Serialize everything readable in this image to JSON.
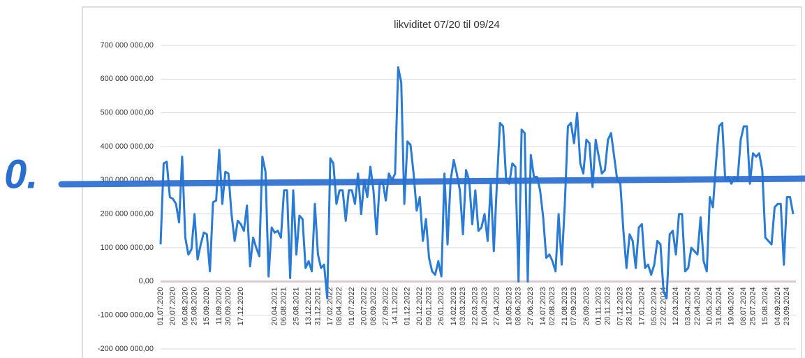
{
  "chart_data": {
    "type": "line",
    "title": "likviditet 07/20 til 09/24",
    "annotation": "0.",
    "ylim": [
      -200000000,
      700000000
    ],
    "yticks": [
      {
        "value": -200000000,
        "label": "-200 000 000,00"
      },
      {
        "value": -100000000,
        "label": "-100 000 000,00"
      },
      {
        "value": 0,
        "label": "0,00"
      },
      {
        "value": 100000000,
        "label": "100 000 000,00"
      },
      {
        "value": 200000000,
        "label": "200 000 000,00"
      },
      {
        "value": 300000000,
        "label": "300 000 000,00"
      },
      {
        "value": 400000000,
        "label": "400 000 000,00"
      },
      {
        "value": 500000000,
        "label": "500 000 000,00"
      },
      {
        "value": 600000000,
        "label": "600 000 000,00"
      },
      {
        "value": 700000000,
        "label": "700 000 000,00"
      }
    ],
    "grid": true,
    "categories": [
      "01.07.2020",
      null,
      null,
      null,
      "20.07.2020",
      null,
      null,
      null,
      "06.08.2020",
      null,
      null,
      "25.08.2020",
      null,
      null,
      null,
      "15.09.2020",
      null,
      null,
      null,
      "11.09.2020",
      null,
      null,
      "30.09.2020",
      null,
      null,
      null,
      "17.12.2020",
      null,
      null,
      null,
      null,
      null,
      null,
      null,
      null,
      null,
      null,
      "20.04.2021",
      null,
      null,
      "06.08.2021",
      null,
      null,
      null,
      "25.08.2021",
      null,
      null,
      null,
      "13.12.2021",
      null,
      null,
      "31.12.2021",
      null,
      null,
      null,
      "17.02.2022",
      null,
      null,
      "08.04.2022",
      null,
      null,
      null,
      "01.07.2022",
      null,
      null,
      null,
      "20.07.2022",
      null,
      null,
      "08.09.2022",
      null,
      null,
      null,
      "27.09.2022",
      null,
      null,
      "14.11.2022",
      null,
      null,
      null,
      "01.12.2022",
      null,
      null,
      null,
      "20.12.2022",
      null,
      null,
      "09.01.2023",
      null,
      null,
      null,
      "26.01.2023",
      null,
      null,
      null,
      "14.02.2023",
      null,
      null,
      "03.03.2023",
      null,
      null,
      null,
      "22.03.2023",
      null,
      null,
      "10.04.2023",
      null,
      null,
      null,
      "27.04.2023",
      null,
      null,
      null,
      "19.05.2023",
      null,
      null,
      "08.06.2023",
      null,
      null,
      null,
      "27.06.2023",
      null,
      null,
      null,
      "14.07.2023",
      null,
      null,
      "02.08.2023",
      null,
      null,
      null,
      "21.08.2023",
      null,
      null,
      "07.09.2023",
      null,
      null,
      null,
      "26.09.2023",
      null,
      null,
      null,
      "01.11.2023",
      null,
      null,
      "20.11.2023",
      null,
      null,
      null,
      "07.12.2023",
      null,
      null,
      "28.12.2023",
      null,
      null,
      null,
      "17.01.2024",
      null,
      null,
      null,
      "05.02.2024",
      null,
      null,
      "22.02.2024",
      null,
      null,
      null,
      "12.03.2024",
      null,
      null,
      null,
      "03.04.2024",
      null,
      null,
      "22.04.2024",
      null,
      null,
      null,
      "10.05.2024",
      null,
      null,
      "31.05.2024",
      null,
      null,
      null,
      "19.06.2024",
      null,
      null,
      null,
      "08.07.2024",
      null,
      null,
      "25.07.2024",
      null,
      null,
      null,
      "15.08.2024",
      null,
      null,
      null,
      "04.09.2024",
      null,
      null,
      "23.09.2024",
      null,
      null
    ],
    "series": [
      {
        "color": "#2a7bd4",
        "values": [
          110000000,
          350000000,
          355000000,
          250000000,
          245000000,
          230000000,
          175000000,
          370000000,
          130000000,
          80000000,
          95000000,
          200000000,
          65000000,
          110000000,
          145000000,
          140000000,
          30000000,
          235000000,
          240000000,
          390000000,
          230000000,
          325000000,
          320000000,
          200000000,
          120000000,
          180000000,
          170000000,
          150000000,
          225000000,
          45000000,
          130000000,
          100000000,
          75000000,
          370000000,
          325000000,
          15000000,
          160000000,
          145000000,
          150000000,
          130000000,
          270000000,
          270000000,
          10000000,
          270000000,
          80000000,
          195000000,
          185000000,
          40000000,
          60000000,
          30000000,
          230000000,
          80000000,
          40000000,
          50000000,
          -50000000,
          365000000,
          350000000,
          230000000,
          270000000,
          270000000,
          180000000,
          270000000,
          270000000,
          230000000,
          320000000,
          200000000,
          300000000,
          250000000,
          340000000,
          270000000,
          140000000,
          290000000,
          295000000,
          240000000,
          320000000,
          300000000,
          320000000,
          635000000,
          590000000,
          230000000,
          415000000,
          405000000,
          320000000,
          210000000,
          250000000,
          120000000,
          185000000,
          70000000,
          30000000,
          20000000,
          60000000,
          15000000,
          320000000,
          110000000,
          300000000,
          360000000,
          320000000,
          270000000,
          140000000,
          330000000,
          300000000,
          170000000,
          270000000,
          150000000,
          160000000,
          200000000,
          120000000,
          290000000,
          90000000,
          290000000,
          470000000,
          460000000,
          300000000,
          290000000,
          350000000,
          340000000,
          0,
          450000000,
          440000000,
          0,
          375000000,
          310000000,
          310000000,
          270000000,
          190000000,
          70000000,
          80000000,
          60000000,
          30000000,
          200000000,
          50000000,
          230000000,
          460000000,
          470000000,
          410000000,
          500000000,
          350000000,
          320000000,
          420000000,
          410000000,
          280000000,
          420000000,
          370000000,
          320000000,
          330000000,
          420000000,
          440000000,
          370000000,
          300000000,
          290000000,
          150000000,
          40000000,
          140000000,
          120000000,
          40000000,
          160000000,
          170000000,
          40000000,
          50000000,
          20000000,
          50000000,
          120000000,
          110000000,
          -30000000,
          -50000000,
          140000000,
          150000000,
          80000000,
          200000000,
          200000000,
          30000000,
          40000000,
          100000000,
          90000000,
          80000000,
          190000000,
          60000000,
          30000000,
          250000000,
          220000000,
          350000000,
          460000000,
          470000000,
          300000000,
          310000000,
          290000000,
          310000000,
          300000000,
          420000000,
          460000000,
          460000000,
          290000000,
          380000000,
          370000000,
          380000000,
          330000000,
          130000000,
          120000000,
          110000000,
          220000000,
          230000000,
          230000000,
          50000000,
          250000000,
          250000000,
          200000000
        ]
      }
    ]
  }
}
